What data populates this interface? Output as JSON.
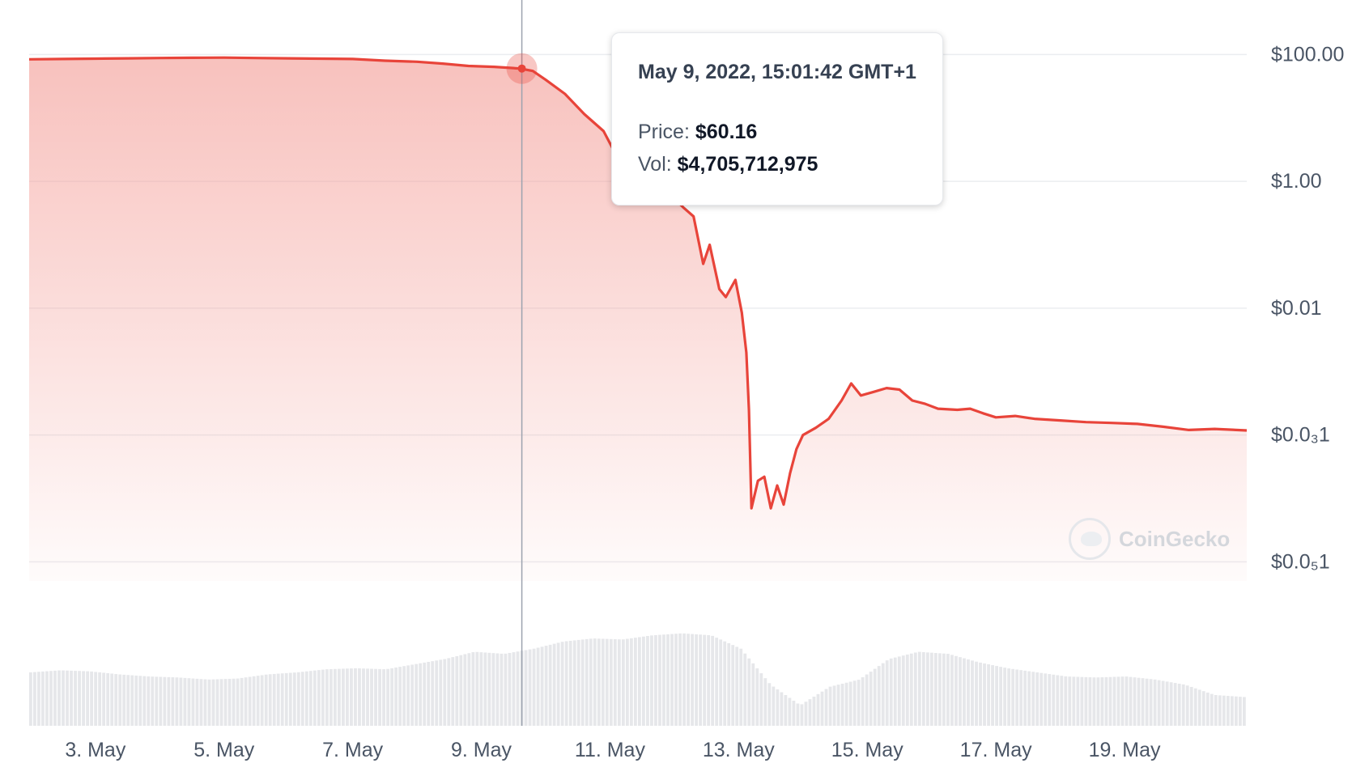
{
  "chart_data": {
    "type": "area",
    "y_scale": "log",
    "ytick_labels": [
      "$100.00",
      "$1.00",
      "$0.01",
      "$0.0₃1",
      "$0.0₅1"
    ],
    "ytick_values": [
      100,
      1,
      0.01,
      0.0001,
      1e-06
    ],
    "xtick_labels": [
      "3. May",
      "5. May",
      "7. May",
      "9. May",
      "11. May",
      "13. May",
      "15. May",
      "17. May",
      "19. May"
    ],
    "xtick_days": [
      3,
      5,
      7,
      9,
      11,
      13,
      15,
      17,
      19
    ],
    "xlim_days": [
      1.97,
      20.9
    ],
    "ylim": [
      5e-07,
      300
    ],
    "series": [
      {
        "values_x_days": [
          1.97,
          2.5,
          3.0,
          3.5,
          4.0,
          4.5,
          5.0,
          5.5,
          6.0,
          6.5,
          7.0,
          7.5,
          8.0,
          8.4,
          8.8,
          9.2,
          9.6,
          9.8,
          10.0,
          10.3,
          10.6,
          10.9,
          11.05,
          11.2,
          11.3,
          11.45,
          11.6,
          11.75,
          11.95,
          12.15,
          12.3,
          12.45,
          12.55,
          12.7,
          12.8,
          12.95,
          13.05,
          13.12,
          13.16,
          13.2,
          13.3,
          13.4,
          13.5,
          13.6,
          13.7,
          13.8,
          13.9,
          14.0,
          14.2,
          14.4,
          14.6,
          14.75,
          14.9,
          15.1,
          15.3,
          15.5,
          15.7,
          15.9,
          16.1,
          16.4,
          16.6,
          16.8,
          17.0,
          17.3,
          17.6,
          18.0,
          18.4,
          18.8,
          19.2,
          19.6,
          20.0,
          20.4,
          20.9
        ],
        "values_y": [
          84,
          85,
          86,
          87,
          88,
          89,
          89.5,
          88,
          87,
          86,
          85,
          80,
          77,
          72,
          66,
          64,
          60.16,
          55,
          40,
          24,
          11.5,
          6.2,
          3.2,
          0.9,
          5.0,
          1.3,
          1.2,
          1.1,
          0.6,
          0.38,
          0.28,
          0.05,
          0.1,
          0.02,
          0.015,
          0.028,
          0.0085,
          0.002,
          0.00025,
          7e-06,
          1.9e-05,
          2.2e-05,
          7e-06,
          1.6e-05,
          8e-06,
          2.5e-05,
          6e-05,
          0.0001,
          0.00013,
          0.00018,
          0.00035,
          0.00065,
          0.00042,
          0.00048,
          0.00055,
          0.00052,
          0.00035,
          0.00031,
          0.00026,
          0.00025,
          0.00026,
          0.00022,
          0.00019,
          0.0002,
          0.00018,
          0.00017,
          0.00016,
          0.000155,
          0.00015,
          0.000135,
          0.00012,
          0.000125,
          0.000118
        ]
      }
    ],
    "volume_relative": [
      0.52,
      0.54,
      0.53,
      0.5,
      0.48,
      0.47,
      0.45,
      0.46,
      0.5,
      0.52,
      0.55,
      0.56,
      0.55,
      0.6,
      0.65,
      0.72,
      0.7,
      0.75,
      0.82,
      0.85,
      0.84,
      0.88,
      0.9,
      0.88,
      0.75,
      0.4,
      0.2,
      0.38,
      0.45,
      0.65,
      0.72,
      0.7,
      0.62,
      0.56,
      0.52,
      0.48,
      0.47,
      0.48,
      0.45,
      0.4,
      0.3,
      0.28
    ]
  },
  "colors": {
    "line": "#e8443a",
    "fill_top": "#f4a09a",
    "grid": "#ebedf0",
    "volume": "#e6e7ea",
    "crosshair": "#9ca3af"
  },
  "tooltip": {
    "date": "May 9, 2022, 15:01:42 GMT+1",
    "price_label": "Price:",
    "price_value": "$60.16",
    "vol_label": "Vol:",
    "vol_value": "$4,705,712,975",
    "hover_day": 9.63
  },
  "watermark": {
    "text": "CoinGecko"
  }
}
